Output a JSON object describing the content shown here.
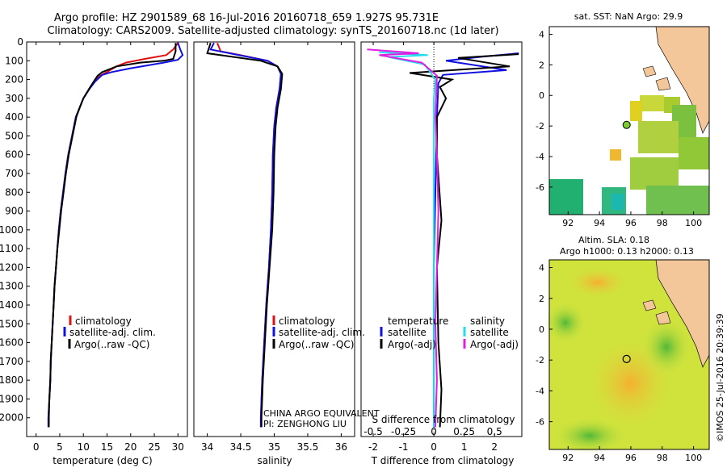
{
  "header": {
    "title_line1": "Argo profile: HZ 2901589_68 16-Jul-2016 20160718_659 1.927S 95.731E",
    "title_line2": "Climatology: CARS2009. Satellite-adjusted climatology: synTS_20160718.nc (1d later)"
  },
  "colors": {
    "climatology": "#e01010",
    "satellite": "#1010e0",
    "argo": "#000000",
    "satellite_sal": "#22ddee",
    "argo_sal": "#e020e0"
  },
  "chart_data": [
    {
      "id": "temperature",
      "type": "line",
      "xlabel": "temperature (deg C)",
      "ylabel": "",
      "xlim": [
        -2,
        32
      ],
      "ylim": [
        2100,
        0
      ],
      "xticks": [
        0,
        5,
        10,
        15,
        20,
        25,
        30
      ],
      "yticks": [
        0,
        100,
        200,
        300,
        400,
        500,
        600,
        700,
        800,
        900,
        1000,
        1100,
        1200,
        1300,
        1400,
        1500,
        1600,
        1700,
        1800,
        1900,
        2000
      ],
      "legend": [
        "climatology",
        "satellite-adj. clim.",
        "Argo(..raw -QC)"
      ],
      "series": [
        {
          "name": "climatology",
          "color": "#e01010",
          "points": [
            [
              30,
              5
            ],
            [
              29,
              40
            ],
            [
              27.5,
              70
            ],
            [
              23,
              90
            ],
            [
              19,
              110
            ],
            [
              17,
              130
            ],
            [
              15,
              160
            ],
            [
              13.5,
              180
            ],
            [
              12.3,
              210
            ],
            [
              11.2,
              250
            ],
            [
              10,
              300
            ],
            [
              9.2,
              350
            ],
            [
              8.4,
              400
            ],
            [
              7.6,
              500
            ],
            [
              6.8,
              600
            ],
            [
              6.2,
              700
            ],
            [
              5.7,
              800
            ],
            [
              5.2,
              900
            ],
            [
              4.8,
              1000
            ],
            [
              4.5,
              1100
            ],
            [
              4.2,
              1200
            ],
            [
              3.9,
              1300
            ],
            [
              3.7,
              1400
            ],
            [
              3.5,
              1500
            ],
            [
              3.3,
              1600
            ],
            [
              3.1,
              1700
            ],
            [
              3,
              1800
            ],
            [
              2.8,
              1900
            ],
            [
              2.6,
              2000
            ],
            [
              2.6,
              2050
            ]
          ]
        },
        {
          "name": "satellite-adj. clim.",
          "color": "#1010e0",
          "points": [
            [
              30,
              5
            ],
            [
              30.5,
              40
            ],
            [
              31,
              70
            ],
            [
              30,
              95
            ],
            [
              27,
              110
            ],
            [
              20,
              140
            ],
            [
              16,
              160
            ],
            [
              14,
              175
            ],
            [
              12.5,
              210
            ],
            [
              11.3,
              250
            ],
            [
              10,
              300
            ],
            [
              9.2,
              350
            ],
            [
              8.4,
              400
            ],
            [
              7.6,
              500
            ],
            [
              6.8,
              600
            ],
            [
              6.2,
              700
            ],
            [
              5.7,
              800
            ],
            [
              5.2,
              900
            ],
            [
              4.8,
              1000
            ],
            [
              4.5,
              1100
            ],
            [
              4.2,
              1200
            ],
            [
              3.9,
              1300
            ],
            [
              3.7,
              1400
            ],
            [
              3.5,
              1500
            ],
            [
              3.3,
              1600
            ],
            [
              3.1,
              1700
            ],
            [
              3,
              1800
            ],
            [
              2.8,
              1900
            ],
            [
              2.6,
              2000
            ],
            [
              2.6,
              2050
            ]
          ]
        },
        {
          "name": "Argo(..raw -QC)",
          "color": "#000000",
          "points": [
            [
              29.5,
              5
            ],
            [
              29.5,
              50
            ],
            [
              29,
              90
            ],
            [
              27,
              100
            ],
            [
              22,
              110
            ],
            [
              17,
              130
            ],
            [
              14,
              160
            ],
            [
              13,
              180
            ],
            [
              12.2,
              210
            ],
            [
              11.2,
              250
            ],
            [
              10,
              300
            ],
            [
              9.2,
              350
            ],
            [
              8.5,
              400
            ],
            [
              7.7,
              500
            ],
            [
              6.9,
              600
            ],
            [
              6.3,
              700
            ],
            [
              5.8,
              800
            ],
            [
              5.3,
              900
            ],
            [
              4.9,
              1000
            ],
            [
              4.5,
              1100
            ],
            [
              4.2,
              1200
            ],
            [
              3.9,
              1300
            ],
            [
              3.7,
              1400
            ],
            [
              3.5,
              1500
            ],
            [
              3.3,
              1600
            ],
            [
              3.1,
              1700
            ],
            [
              3,
              1800
            ],
            [
              2.8,
              1900
            ],
            [
              2.7,
              2000
            ],
            [
              2.7,
              2050
            ]
          ]
        }
      ]
    },
    {
      "id": "salinity",
      "type": "line",
      "xlabel": "salinity",
      "xlim": [
        33.8,
        36.2
      ],
      "ylim": [
        2100,
        0
      ],
      "xticks": [
        34,
        34.5,
        35,
        35.5,
        36
      ],
      "legend": [
        "climatology",
        "satellite-adj. clim.",
        "Argo(..raw -QC)"
      ],
      "series": [
        {
          "name": "climatology",
          "color": "#e01010",
          "points": [
            [
              34.15,
              5
            ],
            [
              34.2,
              50
            ],
            [
              34.5,
              70
            ],
            [
              34.9,
              100
            ],
            [
              35.05,
              130
            ],
            [
              35.1,
              170
            ],
            [
              35.08,
              250
            ],
            [
              35.03,
              350
            ],
            [
              35,
              450
            ],
            [
              34.98,
              600
            ],
            [
              34.97,
              800
            ],
            [
              34.95,
              1000
            ],
            [
              34.92,
              1200
            ],
            [
              34.88,
              1400
            ],
            [
              34.85,
              1600
            ],
            [
              34.82,
              1800
            ],
            [
              34.8,
              2000
            ],
            [
              34.8,
              2050
            ]
          ]
        },
        {
          "name": "satellite-adj. clim.",
          "color": "#1010e0",
          "points": [
            [
              34.1,
              5
            ],
            [
              34.05,
              40
            ],
            [
              34.4,
              65
            ],
            [
              34.9,
              100
            ],
            [
              35.05,
              130
            ],
            [
              35.1,
              170
            ],
            [
              35.08,
              250
            ],
            [
              35.03,
              350
            ],
            [
              35,
              450
            ],
            [
              34.98,
              600
            ],
            [
              34.97,
              800
            ],
            [
              34.95,
              1000
            ],
            [
              34.92,
              1200
            ],
            [
              34.88,
              1400
            ],
            [
              34.85,
              1600
            ],
            [
              34.82,
              1800
            ],
            [
              34.8,
              2000
            ],
            [
              34.8,
              2050
            ]
          ]
        },
        {
          "name": "Argo(..raw -QC)",
          "color": "#000000",
          "points": [
            [
              34.05,
              5
            ],
            [
              34.0,
              60
            ],
            [
              34.3,
              75
            ],
            [
              34.8,
              100
            ],
            [
              35.05,
              130
            ],
            [
              35.12,
              170
            ],
            [
              35.1,
              250
            ],
            [
              35.05,
              350
            ],
            [
              35.02,
              450
            ],
            [
              35,
              600
            ],
            [
              34.99,
              800
            ],
            [
              34.97,
              1000
            ],
            [
              34.93,
              1200
            ],
            [
              34.89,
              1400
            ],
            [
              34.86,
              1600
            ],
            [
              34.83,
              1800
            ],
            [
              34.81,
              2000
            ],
            [
              34.81,
              2050
            ]
          ]
        }
      ]
    },
    {
      "id": "difference",
      "type": "line",
      "xlabel": "T difference from climatology",
      "top_xlabel": "S difference from climatology",
      "xlim": [
        -2.4,
        2.9
      ],
      "ylim": [
        2100,
        0
      ],
      "xticks": [
        -2,
        -1,
        0,
        1,
        2
      ],
      "top_ticks": [
        -0.5,
        -0.25,
        0,
        0.25,
        0.5
      ],
      "legend_left_title": "temperature",
      "legend_right_title": "salinity",
      "legend": [
        "satellite",
        "Argo(-adj)",
        "satellite",
        "Argo(-adj)"
      ],
      "series": [
        {
          "name": "satellite T",
          "color": "#1010e0",
          "points": [
            [
              2.8,
              60
            ],
            [
              1.5,
              80
            ],
            [
              0.4,
              100
            ],
            [
              2.4,
              150
            ],
            [
              0.3,
              175
            ],
            [
              0.15,
              220
            ],
            [
              0.1,
              400
            ],
            [
              0.05,
              800
            ],
            [
              0,
              1200
            ],
            [
              0,
              2050
            ]
          ]
        },
        {
          "name": "Argo T",
          "color": "#000000",
          "points": [
            [
              2.8,
              65
            ],
            [
              0.8,
              85
            ],
            [
              2.5,
              130
            ],
            [
              -0.8,
              165
            ],
            [
              0.6,
              200
            ],
            [
              0.2,
              240
            ],
            [
              0.4,
              300
            ],
            [
              0.1,
              400
            ],
            [
              0.1,
              600
            ],
            [
              0.25,
              950
            ],
            [
              0.1,
              1200
            ],
            [
              0.15,
              1600
            ],
            [
              0.25,
              1850
            ],
            [
              0.2,
              2050
            ]
          ]
        },
        {
          "name": "satellite S",
          "color": "#22ddee",
          "points": [
            [
              -1.8,
              55
            ],
            [
              -0.2,
              70
            ],
            [
              -1.5,
              80
            ],
            [
              -0.3,
              120
            ],
            [
              0.05,
              200
            ],
            [
              0,
              300
            ],
            [
              0,
              1000
            ],
            [
              0,
              2050
            ]
          ]
        },
        {
          "name": "Argo S",
          "color": "#e020e0",
          "points": [
            [
              -2.2,
              40
            ],
            [
              -0.5,
              60
            ],
            [
              -1.8,
              70
            ],
            [
              -0.4,
              110
            ],
            [
              0.1,
              180
            ],
            [
              0.05,
              400
            ],
            [
              0.1,
              600
            ],
            [
              0.15,
              900
            ],
            [
              0.1,
              1200
            ],
            [
              0.05,
              1500
            ],
            [
              0.1,
              1800
            ],
            [
              0.05,
              2050
            ]
          ]
        }
      ]
    }
  ],
  "annotations": {
    "line1": "CHINA ARGO EQUIVALENT",
    "line2": "PI: ZENGHONG LIU"
  },
  "map_top": {
    "title": "sat. SST: NaN Argo: 29.9",
    "xticks": [
      92,
      94,
      96,
      98,
      100
    ],
    "yticks": [
      4,
      2,
      0,
      -2,
      -4,
      -6
    ],
    "xlim": [
      90.8,
      101
    ],
    "ylim": [
      -7.8,
      4.5
    ],
    "argo_position": [
      95.73,
      -1.93
    ]
  },
  "map_bottom": {
    "title_line1": "Altim. SLA: 0.18",
    "title_line2": "Argo h1000: 0.13 h2000: 0.13",
    "xticks": [
      92,
      94,
      96,
      98,
      100
    ],
    "yticks": [
      4,
      2,
      0,
      -2,
      -4,
      -6
    ],
    "xlim": [
      90.8,
      101
    ],
    "ylim": [
      -7.8,
      4.5
    ],
    "argo_position": [
      95.73,
      -1.93
    ]
  },
  "credit": "©IMOS 25-Jul-2016 20:39:39"
}
